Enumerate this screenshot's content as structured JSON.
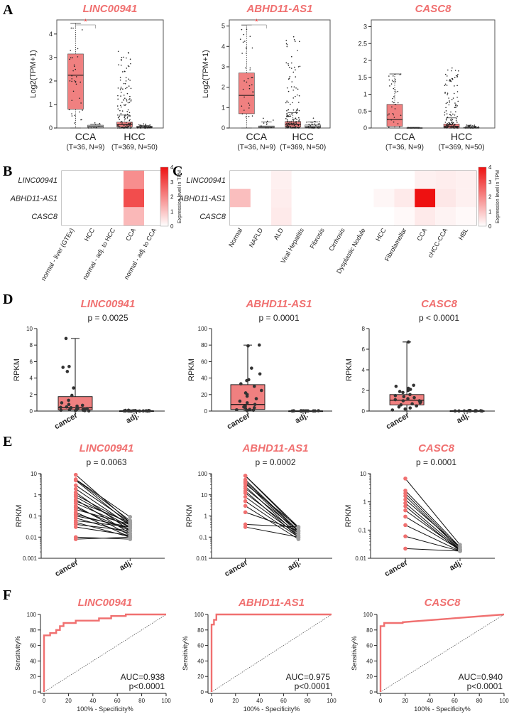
{
  "figure": {
    "panel_labels": [
      "A",
      "B",
      "C",
      "D",
      "E",
      "F"
    ]
  },
  "colors": {
    "salmon": "#f07070",
    "box_fill": "#f08080",
    "gray_box": "#c8c8c8",
    "gray_dot": "#a0a0a0",
    "heat_max": "#ee1111",
    "axis": "#222222"
  },
  "chart_data": [
    {
      "id": "A1",
      "type": "box",
      "title": "LINC00941",
      "ylabel": "Log2(TPM+1)",
      "ylim": [
        0,
        4.6
      ],
      "yticks": [
        0,
        1,
        2,
        3,
        4
      ],
      "groups": [
        {
          "label": "CCA",
          "sublabel": "(T=36, N=9)",
          "boxes": [
            {
              "kind": "tumor",
              "q1": 0.8,
              "median": 2.25,
              "q3": 3.15,
              "min": 0.0,
              "max": 4.45
            },
            {
              "kind": "normal",
              "q1": 0.0,
              "median": 0.05,
              "q3": 0.12,
              "min": 0.0,
              "max": 0.16
            }
          ]
        },
        {
          "label": "HCC",
          "sublabel": "(T=369, N=50)",
          "boxes": [
            {
              "kind": "tumor",
              "q1": 0.05,
              "median": 0.15,
              "q3": 0.25,
              "min": 0.0,
              "max": 0.55
            },
            {
              "kind": "normal",
              "q1": 0.0,
              "median": 0.04,
              "q3": 0.07,
              "min": 0.0,
              "max": 0.1
            }
          ]
        }
      ],
      "significance": "*"
    },
    {
      "id": "A2",
      "type": "box",
      "title": "ABHD11-AS1",
      "ylabel": "Log2(TPM+1)",
      "ylim": [
        0,
        5.3
      ],
      "yticks": [
        0,
        1,
        2,
        3,
        4,
        5
      ],
      "groups": [
        {
          "label": "CCA",
          "sublabel": "(T=36, N=9)",
          "boxes": [
            {
              "kind": "tumor",
              "q1": 0.7,
              "median": 1.6,
              "q3": 2.7,
              "min": 0.0,
              "max": 5.05
            },
            {
              "kind": "normal",
              "q1": 0.0,
              "median": 0.04,
              "q3": 0.1,
              "min": 0.0,
              "max": 0.3
            }
          ]
        },
        {
          "label": "HCC",
          "sublabel": "(T=369, N=50)",
          "boxes": [
            {
              "kind": "tumor",
              "q1": 0.05,
              "median": 0.18,
              "q3": 0.32,
              "min": 0.0,
              "max": 0.75
            },
            {
              "kind": "normal",
              "q1": 0.0,
              "median": 0.05,
              "q3": 0.15,
              "min": 0.0,
              "max": 0.3
            }
          ]
        }
      ],
      "significance": "*"
    },
    {
      "id": "A3",
      "type": "box",
      "title": "CASC8",
      "ylabel": "",
      "ylim": [
        0,
        3.2
      ],
      "yticks": [
        0,
        0.5,
        1,
        1.5,
        2,
        2.5,
        3
      ],
      "groups": [
        {
          "label": "CCA",
          "sublabel": "(T=36, N=9)",
          "boxes": [
            {
              "kind": "tumor",
              "q1": 0.05,
              "median": 0.25,
              "q3": 0.7,
              "min": 0.0,
              "max": 1.6
            },
            {
              "kind": "normal",
              "q1": 0.0,
              "median": 0.0,
              "q3": 0.01,
              "min": 0.0,
              "max": 0.02
            }
          ]
        },
        {
          "label": "HCC",
          "sublabel": "(T=369, N=50)",
          "boxes": [
            {
              "kind": "tumor",
              "q1": 0.0,
              "median": 0.05,
              "q3": 0.12,
              "min": 0.0,
              "max": 0.3
            },
            {
              "kind": "normal",
              "q1": 0.0,
              "median": 0.0,
              "q3": 0.02,
              "min": 0.0,
              "max": 0.05
            }
          ]
        }
      ],
      "significance": ""
    },
    {
      "id": "B",
      "type": "heatmap",
      "rows": [
        "LINC00941",
        "ABHD11-AS1",
        "CASC8"
      ],
      "columns": [
        "normal - liver (GTEx)",
        "HCC",
        "normal - adj. to HCC",
        "CCA",
        "normal - adj. to CCA"
      ],
      "values": [
        [
          0,
          0,
          0,
          1.9,
          0
        ],
        [
          0,
          0,
          0,
          3.0,
          0
        ],
        [
          0,
          0,
          0,
          1.2,
          0
        ]
      ],
      "colorbar": {
        "label": "Expression level in TPM",
        "ticks": [
          0,
          1,
          2,
          3,
          4
        ],
        "range": [
          0,
          4
        ]
      }
    },
    {
      "id": "C",
      "type": "heatmap",
      "rows": [
        "LINC00941",
        "ABHD11-AS1",
        "CASC8"
      ],
      "columns": [
        "Normal",
        "NAFLD",
        "ALD",
        "Viral Hepatitis",
        "Fibrosis",
        "Cirrhosis",
        "Dysplastic Nodule",
        "HCC",
        "Fibrolamellar",
        "CCA",
        "cHCC-CCA",
        "HBL"
      ],
      "values": [
        [
          0,
          0,
          0.25,
          0,
          0,
          0,
          0,
          0,
          0,
          0.25,
          0.3,
          0.25
        ],
        [
          1.1,
          0,
          0.3,
          0,
          0,
          0,
          0,
          0.15,
          0.35,
          4.0,
          0.4,
          0.25
        ],
        [
          0,
          0,
          0.35,
          0,
          0,
          0,
          0,
          0,
          0.1,
          0.35,
          0.2,
          0.1
        ]
      ],
      "colorbar": {
        "label": "Expression level in TPM",
        "ticks": [
          0,
          1,
          2,
          3,
          4
        ],
        "range": [
          0,
          4
        ]
      }
    },
    {
      "id": "D1",
      "type": "box_scatter",
      "title": "LINC00941",
      "pvalue": "p = 0.0025",
      "ylabel": "RPKM",
      "ylim": [
        0,
        10
      ],
      "yticks": [
        0,
        2,
        4,
        6,
        8,
        10
      ],
      "categories": [
        "cancer",
        "adj."
      ],
      "boxes": [
        {
          "min": 0.0,
          "q1": 0.15,
          "median": 0.4,
          "q3": 1.75,
          "max": 8.8
        },
        {
          "min": 0.0,
          "q1": 0.01,
          "median": 0.02,
          "q3": 0.03,
          "max": 0.1
        }
      ],
      "points": [
        [
          8.8,
          5.4,
          5.3,
          4.8,
          2.8,
          1.9,
          1.3,
          1.0,
          0.8,
          0.7,
          0.6,
          0.5,
          0.45,
          0.4,
          0.35,
          0.3,
          0.3,
          0.25,
          0.2,
          0.2,
          0.15,
          0.1,
          0.1,
          0.05,
          0.05,
          0.02
        ],
        [
          0.1,
          0.08,
          0.06,
          0.05,
          0.04,
          0.04,
          0.03,
          0.03,
          0.02,
          0.02,
          0.02,
          0.01,
          0.01,
          0.01,
          0.01,
          0.0,
          0.0
        ]
      ]
    },
    {
      "id": "D2",
      "type": "box_scatter",
      "title": "ABHD11-AS1",
      "pvalue": "p = 0.0001",
      "ylabel": "RPKM",
      "ylim": [
        0,
        100
      ],
      "yticks": [
        0,
        20,
        40,
        60,
        80,
        100
      ],
      "categories": [
        "cancer",
        "adj."
      ],
      "boxes": [
        {
          "min": 0.3,
          "q1": 2.0,
          "median": 8.0,
          "q3": 32.0,
          "max": 80.0
        },
        {
          "min": 0.0,
          "q1": 0.1,
          "median": 0.15,
          "q3": 0.25,
          "max": 0.4
        }
      ],
      "points": [
        [
          80,
          79,
          52,
          45,
          38,
          37,
          33,
          30,
          25,
          22,
          20,
          18,
          15,
          12,
          10,
          8,
          6,
          5,
          4,
          3,
          2,
          1.5,
          1,
          0.5
        ],
        [
          0.4,
          0.35,
          0.3,
          0.25,
          0.2,
          0.2,
          0.15,
          0.15,
          0.12,
          0.1,
          0.1,
          0.08,
          0.05,
          0.02
        ]
      ]
    },
    {
      "id": "D3",
      "type": "box_scatter",
      "title": "CASC8",
      "pvalue": "p < 0.0001",
      "ylabel": "RPKM",
      "ylim": [
        0,
        8
      ],
      "yticks": [
        0,
        2,
        4,
        6,
        8
      ],
      "categories": [
        "cancer",
        "adj."
      ],
      "boxes": [
        {
          "min": 0.0,
          "q1": 0.6,
          "median": 1.05,
          "q3": 1.6,
          "max": 6.7
        },
        {
          "min": 0.0,
          "q1": 0.01,
          "median": 0.02,
          "q3": 0.03,
          "max": 0.05
        }
      ],
      "points": [
        [
          6.7,
          2.5,
          2.4,
          2.2,
          2.1,
          2.0,
          1.9,
          1.8,
          1.6,
          1.5,
          1.4,
          1.3,
          1.2,
          1.1,
          1.0,
          1.0,
          0.9,
          0.8,
          0.7,
          0.6,
          0.5,
          0.4,
          0.3,
          0.2,
          0.1
        ],
        [
          0.05,
          0.04,
          0.03,
          0.03,
          0.02,
          0.02,
          0.02,
          0.01,
          0.01,
          0.01,
          0.0,
          0.0
        ]
      ]
    },
    {
      "id": "E1",
      "type": "paired",
      "title": "LINC00941",
      "pvalue": "p = 0.0063",
      "ylabel": "RPKM",
      "scale": "log",
      "ylim": [
        0.001,
        10
      ],
      "yticks": [
        "10",
        "1",
        "0.1",
        "0.01",
        "0.001"
      ],
      "categories": [
        "cancer",
        "adj."
      ],
      "pairs": [
        [
          8.8,
          0.05
        ],
        [
          5.4,
          0.09
        ],
        [
          5.3,
          0.06
        ],
        [
          4.8,
          0.04
        ],
        [
          2.8,
          0.05
        ],
        [
          1.9,
          0.035
        ],
        [
          1.3,
          0.02
        ],
        [
          1.0,
          0.04
        ],
        [
          0.8,
          0.03
        ],
        [
          0.6,
          0.015
        ],
        [
          0.5,
          0.05
        ],
        [
          0.4,
          0.03
        ],
        [
          0.3,
          0.012
        ],
        [
          0.25,
          0.02
        ],
        [
          0.2,
          0.04
        ],
        [
          0.15,
          0.01
        ],
        [
          0.12,
          0.025
        ],
        [
          0.1,
          0.03
        ],
        [
          0.08,
          0.015
        ],
        [
          0.06,
          0.03
        ],
        [
          0.05,
          0.01
        ],
        [
          0.04,
          0.02
        ],
        [
          0.03,
          0.012
        ],
        [
          0.01,
          0.008
        ],
        [
          0.008,
          0.01
        ]
      ]
    },
    {
      "id": "E2",
      "type": "paired",
      "title": "ABHD11-AS1",
      "pvalue": "p = 0.0002",
      "ylabel": "RPKM",
      "scale": "log",
      "ylim": [
        0.01,
        100
      ],
      "yticks": [
        "100",
        "10",
        "1",
        "0.1",
        "0.01"
      ],
      "categories": [
        "cancer",
        "adj."
      ],
      "pairs": [
        [
          80,
          0.3
        ],
        [
          79,
          0.25
        ],
        [
          52,
          0.2
        ],
        [
          45,
          0.18
        ],
        [
          38,
          0.15
        ],
        [
          33,
          0.3
        ],
        [
          25,
          0.12
        ],
        [
          20,
          0.2
        ],
        [
          15,
          0.1
        ],
        [
          12,
          0.15
        ],
        [
          8,
          0.12
        ],
        [
          5,
          0.1
        ],
        [
          3,
          0.08
        ],
        [
          1.5,
          0.2
        ],
        [
          0.4,
          0.3
        ],
        [
          0.3,
          0.1
        ]
      ]
    },
    {
      "id": "E3",
      "type": "paired",
      "title": "CASC8",
      "pvalue": "p = 0.0001",
      "ylabel": "RPKM",
      "scale": "log",
      "ylim": [
        0.01,
        10
      ],
      "yticks": [
        "10",
        "1",
        "0.1",
        "0.01"
      ],
      "categories": [
        "cancer",
        "adj."
      ],
      "pairs": [
        [
          6.7,
          0.03
        ],
        [
          2.5,
          0.025
        ],
        [
          2.0,
          0.022
        ],
        [
          1.6,
          0.02
        ],
        [
          1.2,
          0.025
        ],
        [
          0.9,
          0.02
        ],
        [
          0.7,
          0.018
        ],
        [
          0.5,
          0.02
        ],
        [
          0.3,
          0.02
        ],
        [
          0.15,
          0.018
        ],
        [
          0.06,
          0.018
        ],
        [
          0.022,
          0.018
        ]
      ]
    },
    {
      "id": "F1",
      "type": "roc",
      "title": "LINC00941",
      "auc": "AUC=0.938",
      "p": "p<0.0001",
      "xlabel": "100% - Specificity%",
      "ylabel": "Sensitivity%",
      "xlim": [
        0,
        100
      ],
      "ylim": [
        0,
        100
      ],
      "ticks": [
        0,
        20,
        40,
        60,
        80,
        100
      ],
      "curve": [
        [
          0,
          0
        ],
        [
          0,
          73
        ],
        [
          5,
          73
        ],
        [
          5,
          76
        ],
        [
          10,
          76
        ],
        [
          10,
          80
        ],
        [
          13,
          80
        ],
        [
          13,
          85
        ],
        [
          16,
          85
        ],
        [
          16,
          89
        ],
        [
          26,
          89
        ],
        [
          26,
          92
        ],
        [
          45,
          92
        ],
        [
          45,
          95
        ],
        [
          55,
          95
        ],
        [
          55,
          98
        ],
        [
          67,
          98
        ],
        [
          67,
          100
        ],
        [
          100,
          100
        ]
      ]
    },
    {
      "id": "F2",
      "type": "roc",
      "title": "ABHD11-AS1",
      "auc": "AUC=0.975",
      "p": "p<0.0001",
      "xlabel": "100% - Specificity%",
      "ylabel": "Sensitivity%",
      "xlim": [
        0,
        100
      ],
      "ylim": [
        0,
        100
      ],
      "ticks": [
        0,
        20,
        40,
        60,
        80,
        100
      ],
      "curve": [
        [
          0,
          0
        ],
        [
          0,
          87
        ],
        [
          2,
          87
        ],
        [
          2,
          93
        ],
        [
          4,
          93
        ],
        [
          4,
          100
        ],
        [
          100,
          100
        ]
      ]
    },
    {
      "id": "F3",
      "type": "roc",
      "title": "CASC8",
      "auc": "AUC=0.940",
      "p": "p<0.0001",
      "xlabel": "100% - Specificity%",
      "ylabel": "Sensitivity%",
      "xlim": [
        0,
        100
      ],
      "ylim": [
        0,
        100
      ],
      "ticks": [
        0,
        20,
        40,
        60,
        80,
        100
      ],
      "curve": [
        [
          0,
          0
        ],
        [
          0,
          85
        ],
        [
          3,
          85
        ],
        [
          3,
          89
        ],
        [
          18,
          89
        ],
        [
          18,
          90
        ],
        [
          100,
          100
        ]
      ]
    }
  ]
}
